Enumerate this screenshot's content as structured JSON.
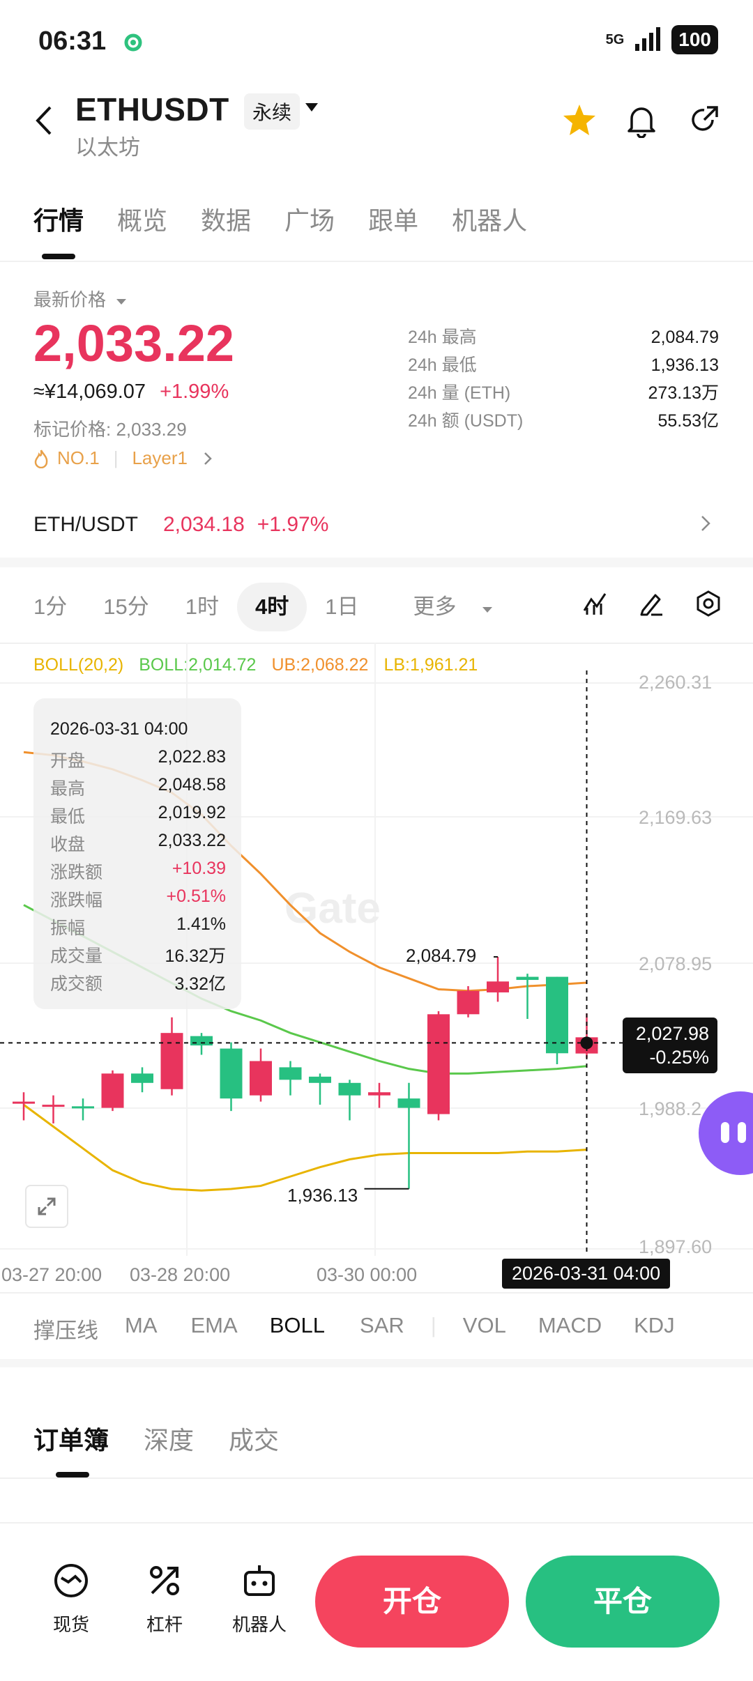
{
  "status": {
    "time": "06:31",
    "network": "5G",
    "battery": "100"
  },
  "header": {
    "pair": "ETHUSDT",
    "contract_type": "永续",
    "subtitle": "以太坊"
  },
  "tabs": [
    "行情",
    "概览",
    "数据",
    "广场",
    "跟单",
    "机器人"
  ],
  "price": {
    "label": "最新价格",
    "last": "2,033.22",
    "cny": "≈¥14,069.07",
    "change_pct": "+1.99%",
    "mark": "标记价格: 2,033.29",
    "rank": "NO.1",
    "tag": "Layer1"
  },
  "stats": [
    {
      "label": "24h  最高",
      "value": "2,084.79"
    },
    {
      "label": "24h  最低",
      "value": "1,936.13"
    },
    {
      "label": "24h  量 (ETH)",
      "value": "273.13万"
    },
    {
      "label": "24h  额 (USDT)",
      "value": "55.53亿"
    }
  ],
  "spot": {
    "pair": "ETH/USDT",
    "price": "2,034.18",
    "change": "+1.97%"
  },
  "intervals": [
    "1分",
    "15分",
    "1时",
    "4时",
    "1日",
    "更多"
  ],
  "active_interval": "4时",
  "boll": {
    "name": "BOLL(20,2)",
    "mid": "BOLL:2,014.72",
    "ub": "UB:2,068.22",
    "lb": "LB:1,961.21"
  },
  "tooltip": {
    "date": "2026-03-31 04:00",
    "rows": [
      {
        "k": "开盘",
        "v": "2,022.83"
      },
      {
        "k": "最高",
        "v": "2,048.58"
      },
      {
        "k": "最低",
        "v": "2,019.92"
      },
      {
        "k": "收盘",
        "v": "2,033.22"
      },
      {
        "k": "涨跌额",
        "v": "+10.39"
      },
      {
        "k": "涨跌幅",
        "v": "+0.51%"
      },
      {
        "k": "振幅",
        "v": "1.41%"
      },
      {
        "k": "成交量",
        "v": "16.32万"
      },
      {
        "k": "成交额",
        "v": "3.32亿"
      }
    ]
  },
  "chart_axis": {
    "y_ticks": [
      "2,260.31",
      "2,169.63",
      "2,078.95",
      "1,988.2",
      "1,897.60"
    ],
    "x_ticks": [
      "03-27 20:00",
      "03-28 20:00",
      "03-30 00:00"
    ],
    "high_label": "2,084.79",
    "low_label": "1,936.13",
    "current_price": "2,027.98",
    "current_change": "-0.25%",
    "crosshair_date": "2026-03-31 04:00",
    "watermark": "Gate"
  },
  "indicator_tabs": [
    "撑压线",
    "MA",
    "EMA",
    "BOLL",
    "SAR",
    "VOL",
    "MACD",
    "KDJ"
  ],
  "active_indicator": "BOLL",
  "orderbook_tabs": [
    "订单簿",
    "深度",
    "成交"
  ],
  "bottom_nav": [
    {
      "label": "现货",
      "icon": "spot-icon"
    },
    {
      "label": "杠杆",
      "icon": "leverage-icon"
    },
    {
      "label": "机器人",
      "icon": "robot-icon"
    }
  ],
  "actions": {
    "open": "开仓",
    "close": "平仓"
  },
  "colors": {
    "up": "#e8345d",
    "down": "#27c081",
    "accent": "#f5a623"
  },
  "chart_data": {
    "type": "candlestick",
    "title": "",
    "xlabel": "",
    "ylabel": "",
    "ylim": [
      1897.6,
      2260.31
    ],
    "candles": [
      {
        "o": 1992,
        "c": 1992,
        "h": 1998,
        "l": 1980,
        "color": "up"
      },
      {
        "o": 1990,
        "c": 1990,
        "h": 1996,
        "l": 1978,
        "color": "up"
      },
      {
        "o": 1988,
        "c": 1989,
        "h": 1994,
        "l": 1980,
        "color": "down"
      },
      {
        "o": 1988,
        "c": 2010,
        "h": 2012,
        "l": 1986,
        "color": "up"
      },
      {
        "o": 2010,
        "c": 2004,
        "h": 2014,
        "l": 1998,
        "color": "down"
      },
      {
        "o": 2000,
        "c": 2036,
        "h": 2046,
        "l": 1996,
        "color": "up"
      },
      {
        "o": 2034,
        "c": 2028,
        "h": 2036,
        "l": 2022,
        "color": "down"
      },
      {
        "o": 2026,
        "c": 1994,
        "h": 2030,
        "l": 1986,
        "color": "down"
      },
      {
        "o": 1996,
        "c": 2018,
        "h": 2026,
        "l": 1992,
        "color": "up"
      },
      {
        "o": 2014,
        "c": 2006,
        "h": 2018,
        "l": 1996,
        "color": "down"
      },
      {
        "o": 2008,
        "c": 2004,
        "h": 2010,
        "l": 1990,
        "color": "down"
      },
      {
        "o": 2004,
        "c": 1996,
        "h": 2006,
        "l": 1980,
        "color": "down"
      },
      {
        "o": 1996,
        "c": 1998,
        "h": 2004,
        "l": 1988,
        "color": "up"
      },
      {
        "o": 1994,
        "c": 1988,
        "h": 2004,
        "l": 1936.13,
        "color": "down"
      },
      {
        "o": 1984,
        "c": 2048,
        "h": 2050,
        "l": 1980,
        "color": "up"
      },
      {
        "o": 2048,
        "c": 2063,
        "h": 2066,
        "l": 2046,
        "color": "up"
      },
      {
        "o": 2062,
        "c": 2069,
        "h": 2084.79,
        "l": 2056,
        "color": "up"
      },
      {
        "o": 2072,
        "c": 2070,
        "h": 2074,
        "l": 2045,
        "color": "down"
      },
      {
        "o": 2072,
        "c": 2023,
        "h": 2072,
        "l": 2016,
        "color": "down"
      },
      {
        "o": 2022.83,
        "c": 2033.22,
        "h": 2048.58,
        "l": 2019.92,
        "color": "up"
      }
    ],
    "boll_ub": [
      2216,
      2214,
      2210,
      2205,
      2198,
      2190,
      2176,
      2156,
      2138,
      2118,
      2100,
      2088,
      2078,
      2071,
      2064,
      2063,
      2064,
      2066,
      2067,
      2068.22
    ],
    "boll_mid": [
      2118,
      2108,
      2098,
      2088,
      2078,
      2068,
      2058,
      2050,
      2044,
      2036,
      2030,
      2024,
      2018,
      2013,
      2010,
      2010,
      2011,
      2012,
      2013,
      2014.72
    ],
    "boll_lb": [
      1990,
      1976,
      1962,
      1948,
      1940,
      1936,
      1935,
      1936,
      1938,
      1944,
      1950,
      1955,
      1958,
      1959,
      1959,
      1959,
      1959,
      1960,
      1960,
      1961.21
    ]
  }
}
